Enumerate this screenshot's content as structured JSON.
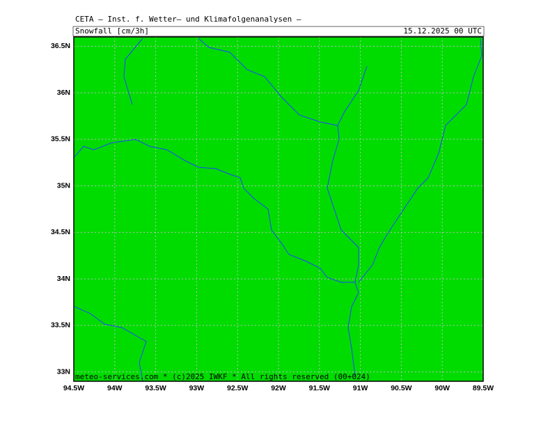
{
  "header": {
    "title": "CETA — Inst. f. Wetter— und Klimafolgenanalysen —",
    "variable": "Snowfall [cm/3h]",
    "valid_time": "15.12.2025 00 UTC"
  },
  "map": {
    "fill_color": "#00dc00",
    "grid": true,
    "xlim": [
      -94.5,
      -89.5
    ],
    "ylim": [
      32.9,
      36.6
    ],
    "xticks": [
      {
        "value": -94.5,
        "label": "94.5W"
      },
      {
        "value": -94,
        "label": "94W"
      },
      {
        "value": -93.5,
        "label": "93.5W"
      },
      {
        "value": -93,
        "label": "93W"
      },
      {
        "value": -92.5,
        "label": "92.5W"
      },
      {
        "value": -92,
        "label": "92W"
      },
      {
        "value": -91.5,
        "label": "91.5W"
      },
      {
        "value": -91,
        "label": "91W"
      },
      {
        "value": -90.5,
        "label": "90.5W"
      },
      {
        "value": -90,
        "label": "90W"
      },
      {
        "value": -89.5,
        "label": "89.5W"
      }
    ],
    "yticks": [
      {
        "value": 33,
        "label": "33N"
      },
      {
        "value": 33.5,
        "label": "33.5N"
      },
      {
        "value": 34,
        "label": "34N"
      },
      {
        "value": 34.5,
        "label": "34.5N"
      },
      {
        "value": 35,
        "label": "35N"
      },
      {
        "value": 35.5,
        "label": "35.5N"
      },
      {
        "value": 36,
        "label": "36N"
      },
      {
        "value": 36.5,
        "label": "36.5N"
      }
    ]
  },
  "footer": "meteo-services.com * (c)2025 IWKF * All rights reserved (00+024)"
}
